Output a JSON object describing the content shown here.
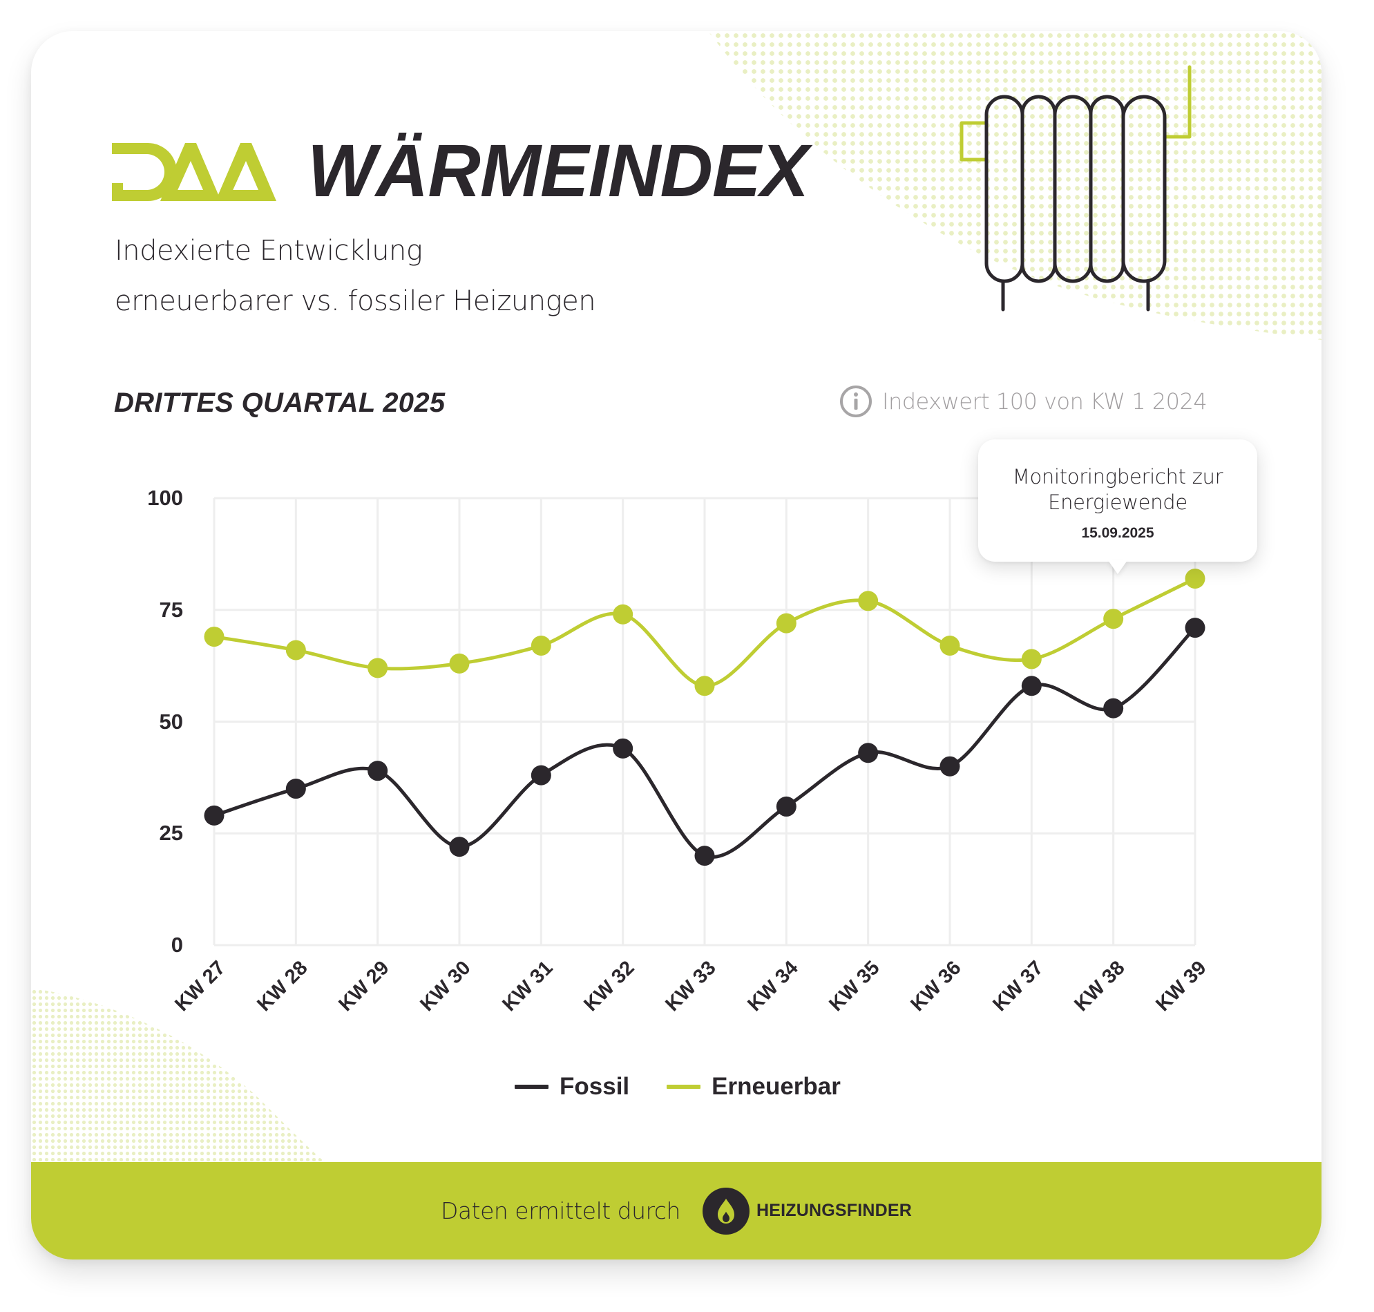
{
  "header": {
    "logo_text": "DAA",
    "title": "WÄRMEINDEX",
    "subtitle_line1": "Indexierte Entwicklung",
    "subtitle_line2": "erneuerbarer vs. fossiler Heizungen",
    "illustration": "radiator-icon"
  },
  "section": {
    "quarter_label": "DRITTES QUARTAL 2025",
    "info_icon": "info-icon",
    "info_text": "Indexwert 100 von KW 1 2024"
  },
  "tooltip": {
    "title_line1": "Monitoringbericht zur",
    "title_line2": "Energiewende",
    "date": "15.09.2025",
    "anchor_category": "KW 38"
  },
  "footer": {
    "text": "Daten ermittelt durch",
    "brand_icon": "flame-icon",
    "brand": "HEIZUNGSFINDER"
  },
  "colors": {
    "brand_green": "#bfcd33",
    "dark": "#2b272c",
    "grid": "#eeeeee",
    "muted": "#a19ea0"
  },
  "chart_data": {
    "type": "line",
    "title": "WÄRMEINDEX",
    "subtitle": "Indexierte Entwicklung erneuerbarer vs. fossiler Heizungen – DRITTES QUARTAL 2025",
    "xlabel": "",
    "ylabel": "",
    "ylim": [
      0,
      100
    ],
    "yticks": [
      0,
      25,
      50,
      75,
      100
    ],
    "grid": true,
    "smooth": true,
    "legend_position": "bottom",
    "categories": [
      "KW 27",
      "KW 28",
      "KW 29",
      "KW 30",
      "KW 31",
      "KW 32",
      "KW 33",
      "KW 34",
      "KW 35",
      "KW 36",
      "KW 37",
      "KW 38",
      "KW 39"
    ],
    "series": [
      {
        "name": "Fossil",
        "color": "#2b272c",
        "values": [
          29,
          35,
          39,
          22,
          38,
          44,
          20,
          31,
          43,
          40,
          58,
          53,
          71
        ]
      },
      {
        "name": "Erneuerbar",
        "color": "#bfcd33",
        "values": [
          69,
          66,
          62,
          63,
          67,
          74,
          58,
          72,
          77,
          67,
          64,
          73,
          82
        ]
      }
    ],
    "annotations": [
      {
        "category": "KW 38",
        "text": "Monitoringbericht zur Energiewende",
        "date": "15.09.2025"
      }
    ],
    "note": "Indexwert 100 von KW 1 2024"
  }
}
